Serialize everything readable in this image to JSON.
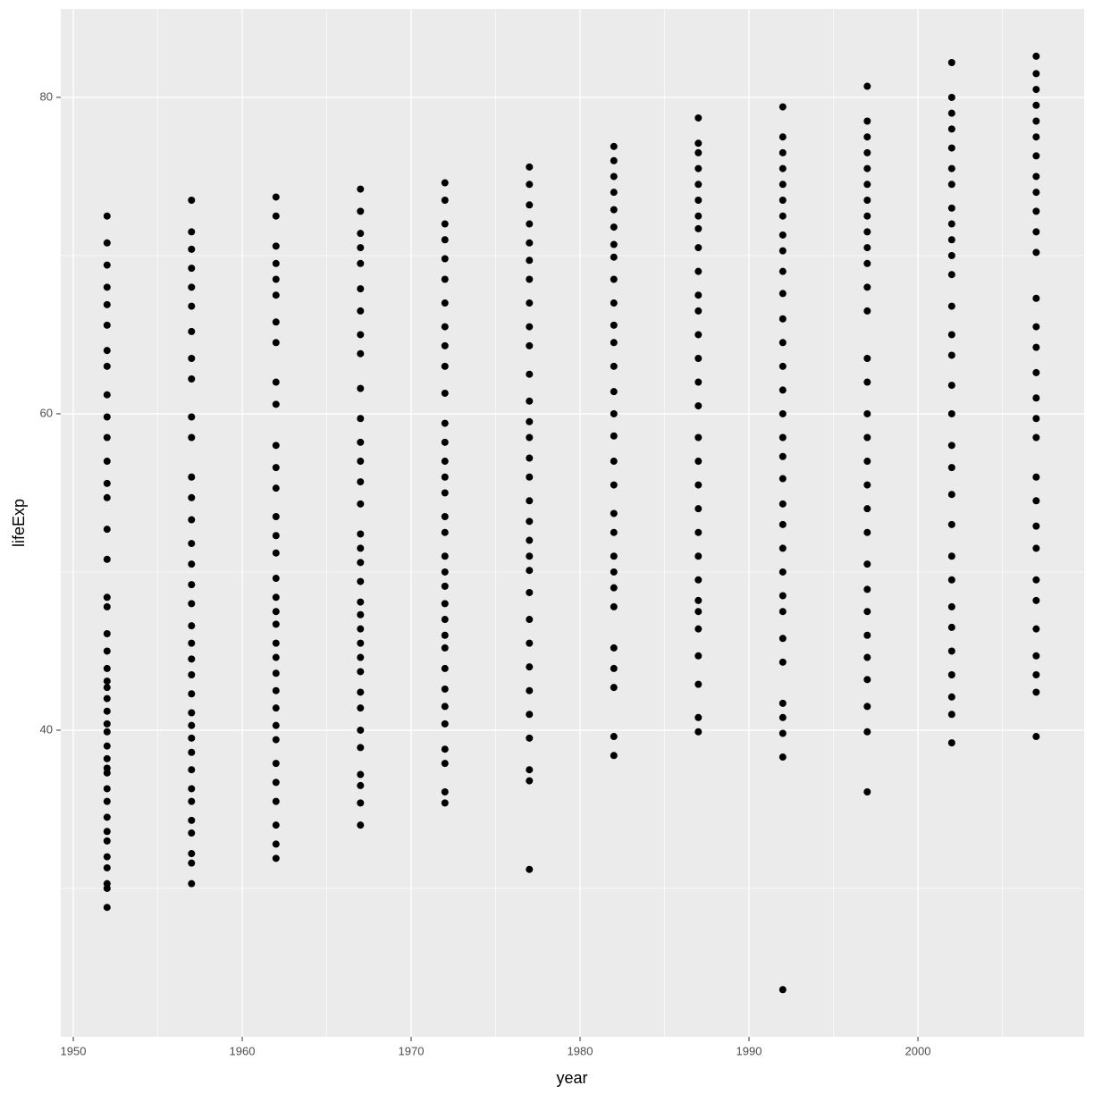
{
  "chart_data": {
    "type": "scatter",
    "x_label": "year",
    "y_label": "lifeExp",
    "xlim": [
      1949.26,
      2009.84
    ],
    "ylim": [
      20.62,
      85.59
    ],
    "xticks": [
      1950,
      1960,
      1970,
      1980,
      1990,
      2000
    ],
    "yticks": [
      40,
      60,
      80
    ],
    "x_minor_grid": [
      1955,
      1965,
      1975,
      1985,
      1995,
      2005
    ],
    "y_minor_grid": [
      30,
      50,
      70
    ],
    "grid": true,
    "color": "#000000",
    "points": [
      {
        "x": 1952,
        "values": [
          28.8,
          30.0,
          30.3,
          31.3,
          32.0,
          33.0,
          33.6,
          34.5,
          35.5,
          36.3,
          37.3,
          37.6,
          38.2,
          39.0,
          39.9,
          40.4,
          41.2,
          42.0,
          42.7,
          43.1,
          43.9,
          45.0,
          46.1,
          47.8,
          48.4,
          50.8,
          52.7,
          54.7,
          55.6,
          57.0,
          58.5,
          59.8,
          61.2,
          63.0,
          64.0,
          65.6,
          66.9,
          68.0,
          69.4,
          70.8,
          72.5
        ]
      },
      {
        "x": 1957,
        "values": [
          30.3,
          31.6,
          32.2,
          33.5,
          34.3,
          35.5,
          36.3,
          37.5,
          38.6,
          39.5,
          40.3,
          41.1,
          42.3,
          43.5,
          44.5,
          45.5,
          46.6,
          48.0,
          49.2,
          50.5,
          51.8,
          53.3,
          54.7,
          56.0,
          58.5,
          59.8,
          62.2,
          63.5,
          65.2,
          66.8,
          68.0,
          69.2,
          70.4,
          71.5,
          73.5
        ]
      },
      {
        "x": 1962,
        "values": [
          31.9,
          32.8,
          34.0,
          35.5,
          36.7,
          37.9,
          39.4,
          40.3,
          41.4,
          42.5,
          43.6,
          44.6,
          45.5,
          46.7,
          47.5,
          48.4,
          49.6,
          51.2,
          52.3,
          53.5,
          55.3,
          56.6,
          58.0,
          60.6,
          62.0,
          64.5,
          65.8,
          67.5,
          68.5,
          69.5,
          70.6,
          72.5,
          73.7
        ]
      },
      {
        "x": 1967,
        "values": [
          34.0,
          35.4,
          36.5,
          37.2,
          38.9,
          40.0,
          41.4,
          42.4,
          43.7,
          44.6,
          45.5,
          46.4,
          47.3,
          48.1,
          49.4,
          50.6,
          51.5,
          52.4,
          54.3,
          55.7,
          57.0,
          58.2,
          59.7,
          61.6,
          63.8,
          65.0,
          66.5,
          67.9,
          69.5,
          70.5,
          71.4,
          72.8,
          74.2
        ]
      },
      {
        "x": 1972,
        "values": [
          35.4,
          36.1,
          37.9,
          38.8,
          40.4,
          41.5,
          42.6,
          43.9,
          45.2,
          46.0,
          47.0,
          48.0,
          49.1,
          50.0,
          51.0,
          52.5,
          53.5,
          55.0,
          56.0,
          57.0,
          58.2,
          59.4,
          61.3,
          63.0,
          64.3,
          65.5,
          67.0,
          68.5,
          69.8,
          71.0,
          72.0,
          73.5,
          74.6
        ]
      },
      {
        "x": 1977,
        "values": [
          31.2,
          36.8,
          37.5,
          39.5,
          41.0,
          42.5,
          44.0,
          45.5,
          47.0,
          48.7,
          50.1,
          51.0,
          52.0,
          53.2,
          54.5,
          56.0,
          57.2,
          58.5,
          59.5,
          60.8,
          62.5,
          64.3,
          65.5,
          67.0,
          68.5,
          69.7,
          70.8,
          72.0,
          73.2,
          74.5,
          75.6
        ]
      },
      {
        "x": 1982,
        "values": [
          38.4,
          39.6,
          42.7,
          43.9,
          45.2,
          47.8,
          49.0,
          50.0,
          51.0,
          52.5,
          53.7,
          55.5,
          57.0,
          58.6,
          60.0,
          61.4,
          63.0,
          64.5,
          65.6,
          67.0,
          68.5,
          69.9,
          70.7,
          71.8,
          72.9,
          74.0,
          75.0,
          76.0,
          76.9
        ]
      },
      {
        "x": 1987,
        "values": [
          39.9,
          40.8,
          42.9,
          44.7,
          46.4,
          47.5,
          48.2,
          49.5,
          51.0,
          52.5,
          54.0,
          55.5,
          57.0,
          58.5,
          60.5,
          62.0,
          63.5,
          65.0,
          66.5,
          67.5,
          69.0,
          70.5,
          71.7,
          72.5,
          73.5,
          74.5,
          75.5,
          76.5,
          77.1,
          78.7
        ]
      },
      {
        "x": 1992,
        "values": [
          23.6,
          38.3,
          39.8,
          40.8,
          41.7,
          44.3,
          45.8,
          47.5,
          48.5,
          50.0,
          51.5,
          53.0,
          54.3,
          55.9,
          57.3,
          58.5,
          60.0,
          61.5,
          63.0,
          64.5,
          66.0,
          67.6,
          69.0,
          70.3,
          71.3,
          72.5,
          73.5,
          74.5,
          75.5,
          76.5,
          77.5,
          79.4
        ]
      },
      {
        "x": 1997,
        "values": [
          36.1,
          39.9,
          41.5,
          43.2,
          44.6,
          46.0,
          47.5,
          48.9,
          50.5,
          52.5,
          54.0,
          55.5,
          57.0,
          58.5,
          60.0,
          62.0,
          63.5,
          66.5,
          68.0,
          69.5,
          70.5,
          71.5,
          72.5,
          73.5,
          74.5,
          75.5,
          76.5,
          77.5,
          78.5,
          80.7
        ]
      },
      {
        "x": 2002,
        "values": [
          39.2,
          41.0,
          42.1,
          43.5,
          45.0,
          46.5,
          47.8,
          49.5,
          51.0,
          53.0,
          54.9,
          56.6,
          58.0,
          60.0,
          61.8,
          63.7,
          65.0,
          66.8,
          68.8,
          70.0,
          71.0,
          72.0,
          73.0,
          74.5,
          75.5,
          76.8,
          78.0,
          79.0,
          80.0,
          82.2
        ]
      },
      {
        "x": 2007,
        "values": [
          39.6,
          42.4,
          43.5,
          44.7,
          46.4,
          48.2,
          49.5,
          51.5,
          52.9,
          54.5,
          56.0,
          58.5,
          59.7,
          61.0,
          62.6,
          64.2,
          65.5,
          67.3,
          70.2,
          71.5,
          72.8,
          74.0,
          75.0,
          76.3,
          77.5,
          78.5,
          79.5,
          80.5,
          81.5,
          82.6
        ]
      }
    ]
  }
}
